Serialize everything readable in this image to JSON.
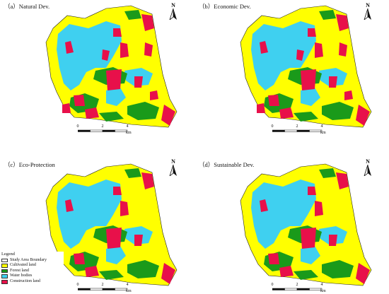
{
  "panels": [
    {
      "id": "natural",
      "title": "（a）Natural Dev."
    },
    {
      "id": "economic",
      "title": "（b）Economic Dev."
    },
    {
      "id": "eco",
      "title": "（c）Eco-Protection"
    },
    {
      "id": "sustainable",
      "title": "（d）Sustainable Dev."
    }
  ],
  "north_label": "N",
  "scale": {
    "ticks": [
      "0",
      "2",
      "4"
    ],
    "unit": "km"
  },
  "legend": {
    "title": "Legend",
    "items": [
      {
        "label": "Study Area Boundary",
        "color": "#ffffff"
      },
      {
        "label": "Cultivated land",
        "color": "#ffff00"
      },
      {
        "label": "Forest land",
        "color": "#1a9a1a"
      },
      {
        "label": "Water bodies",
        "color": "#3fd0f0"
      },
      {
        "label": "Construction land",
        "color": "#e8104a"
      }
    ]
  },
  "colors": {
    "cultivated": "#ffff00",
    "forest": "#1a9a1a",
    "water": "#3fd0f0",
    "construction": "#e8104a"
  }
}
